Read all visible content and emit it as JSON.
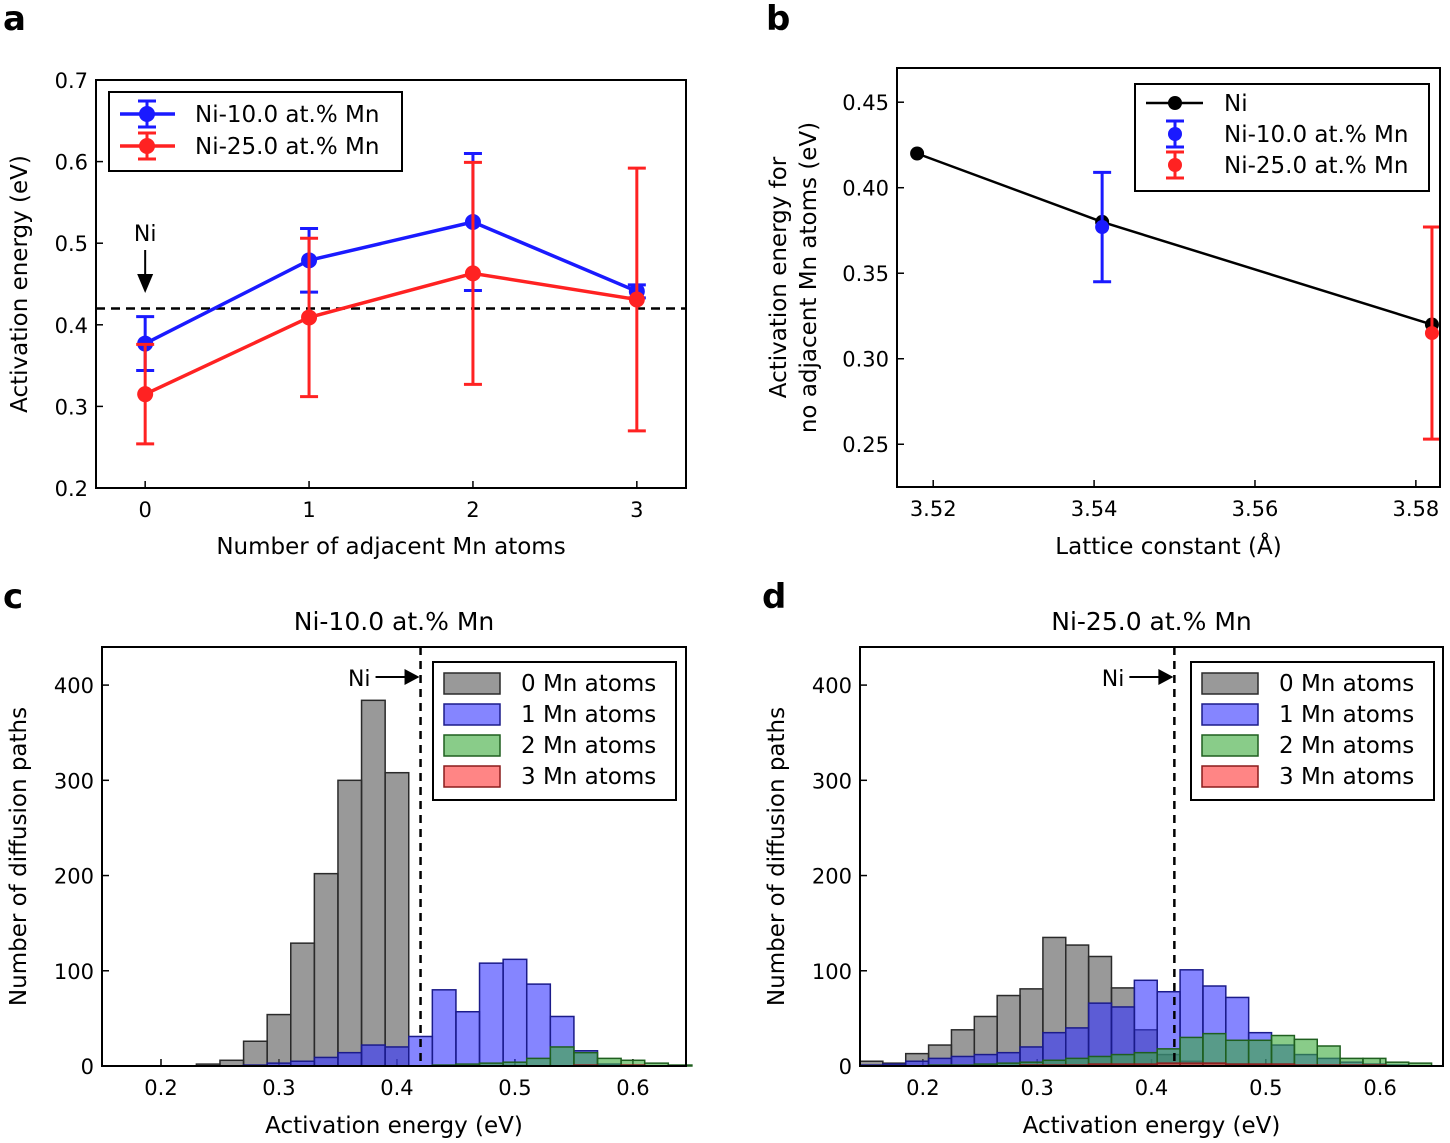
{
  "chart_data": [
    {
      "type": "line",
      "panel": "a",
      "title": "",
      "xlabel": "Number of adjacent Mn atoms",
      "ylabel": "Activation energy (eV)",
      "xlim": [
        -0.3,
        3.3
      ],
      "ylim": [
        0.2,
        0.7
      ],
      "xticks": [
        "0",
        "1",
        "2",
        "3"
      ],
      "xtick_values": [
        0,
        1,
        2,
        3
      ],
      "yticks": [
        "0.2",
        "0.3",
        "0.4",
        "0.5",
        "0.6",
        "0.7"
      ],
      "ytick_values": [
        0.2,
        0.3,
        0.4,
        0.5,
        0.6,
        0.7
      ],
      "reference_line": {
        "y": 0.42,
        "label": "Ni",
        "x": 0
      },
      "legend_position": "top-left",
      "series": [
        {
          "name": "Ni-10.0 at.% Mn",
          "color": "#1a1aff",
          "x": [
            0,
            1,
            2,
            3
          ],
          "y": [
            0.377,
            0.479,
            0.526,
            0.441
          ],
          "err": [
            0.033,
            0.039,
            0.084,
            0.008
          ]
        },
        {
          "name": "Ni-25.0 at.% Mn",
          "color": "#ff2222",
          "x": [
            0,
            1,
            2,
            3
          ],
          "y": [
            0.315,
            0.409,
            0.463,
            0.431
          ],
          "err": [
            0.061,
            0.097,
            0.136,
            0.161
          ]
        }
      ]
    },
    {
      "type": "line",
      "panel": "b",
      "title": "",
      "xlabel": "Lattice constant (Å)",
      "ylabel_line1": "Activation energy for",
      "ylabel_line2": "no adjacent Mn atoms (eV)",
      "xlim": [
        3.5155,
        3.583
      ],
      "ylim": [
        0.225,
        0.47
      ],
      "xticks": [
        "3.52",
        "3.54",
        "3.56",
        "3.58"
      ],
      "xtick_values": [
        3.52,
        3.54,
        3.56,
        3.58
      ],
      "yticks": [
        "0.25",
        "0.30",
        "0.35",
        "0.40",
        "0.45"
      ],
      "ytick_values": [
        0.25,
        0.3,
        0.35,
        0.4,
        0.45
      ],
      "legend_position": "top-right",
      "series": [
        {
          "name": "Ni",
          "color": "#000000",
          "x": [
            3.518,
            3.541,
            3.582
          ],
          "y": [
            0.42,
            0.38,
            0.32
          ],
          "err": null,
          "line": true
        },
        {
          "name": "Ni-10.0 at.% Mn",
          "color": "#1a1aff",
          "x": [
            3.541
          ],
          "y": [
            0.377
          ],
          "err": [
            0.032
          ],
          "line": false
        },
        {
          "name": "Ni-25.0 at.% Mn",
          "color": "#ff2222",
          "x": [
            3.582
          ],
          "y": [
            0.315
          ],
          "err": [
            0.062
          ],
          "line": false
        }
      ]
    },
    {
      "type": "histogram",
      "panel": "c",
      "title": "Ni-10.0 at.% Mn",
      "xlabel": "Activation energy (eV)",
      "ylabel": "Number of diffusion paths",
      "xlim": [
        0.15,
        0.645
      ],
      "ylim": [
        0,
        440
      ],
      "xticks": [
        "0.2",
        "0.3",
        "0.4",
        "0.5",
        "0.6"
      ],
      "xtick_values": [
        0.2,
        0.3,
        0.4,
        0.5,
        0.6
      ],
      "yticks": [
        "0",
        "100",
        "200",
        "300",
        "400"
      ],
      "ytick_values": [
        0,
        100,
        200,
        300,
        400
      ],
      "bin_start": 0.15,
      "bin_width": 0.02,
      "reference_line": {
        "x": 0.42,
        "label": "Ni"
      },
      "legend_position": "top-right",
      "series": [
        {
          "name": "0 Mn atoms",
          "color": "#555555",
          "values": [
            0,
            0,
            0,
            0,
            2,
            6,
            26,
            54,
            129,
            202,
            300,
            384,
            308,
            0,
            0,
            0,
            0,
            0,
            0,
            0,
            0,
            0,
            0,
            0,
            0
          ]
        },
        {
          "name": "1 Mn atoms",
          "color": "#3333ff",
          "values": [
            0,
            0,
            0,
            0,
            0,
            0,
            1,
            3,
            5,
            9,
            14,
            22,
            20,
            31,
            80,
            57,
            108,
            112,
            86,
            52,
            16,
            2,
            0,
            0,
            0
          ]
        },
        {
          "name": "2 Mn atoms",
          "color": "#3aaa3a",
          "values": [
            0,
            0,
            0,
            0,
            0,
            0,
            0,
            0,
            0,
            0,
            0,
            0,
            0,
            0,
            1,
            2,
            3,
            4,
            8,
            20,
            14,
            8,
            6,
            3,
            1
          ]
        },
        {
          "name": "3 Mn atoms",
          "color": "#ff3333",
          "values": [
            0,
            0,
            0,
            0,
            0,
            0,
            0,
            0,
            0,
            0,
            0,
            0,
            0,
            0,
            0,
            0,
            0,
            0,
            0,
            0,
            1,
            0,
            1,
            0,
            0
          ]
        }
      ]
    },
    {
      "type": "histogram",
      "panel": "d",
      "title": "Ni-25.0 at.% Mn",
      "xlabel": "Activation energy (eV)",
      "ylabel": "Number of diffusion paths",
      "xlim": [
        0.145,
        0.655
      ],
      "ylim": [
        0,
        440
      ],
      "xticks": [
        "0.2",
        "0.3",
        "0.4",
        "0.5",
        "0.6"
      ],
      "xtick_values": [
        0.2,
        0.3,
        0.4,
        0.5,
        0.6
      ],
      "yticks": [
        "0",
        "100",
        "200",
        "300",
        "400"
      ],
      "ytick_values": [
        0,
        100,
        200,
        300,
        400
      ],
      "bin_start": 0.145,
      "bin_width": 0.02,
      "reference_line": {
        "x": 0.42,
        "label": "Ni"
      },
      "legend_position": "top-right",
      "series": [
        {
          "name": "0 Mn atoms",
          "color": "#555555",
          "values": [
            5,
            3,
            13,
            22,
            38,
            52,
            74,
            81,
            135,
            127,
            115,
            82,
            38,
            12,
            5,
            3,
            2,
            1,
            0,
            0,
            0,
            0,
            0,
            0,
            0
          ]
        },
        {
          "name": "1 Mn atoms",
          "color": "#3333ff",
          "values": [
            1,
            2,
            5,
            8,
            10,
            12,
            14,
            20,
            35,
            40,
            66,
            62,
            90,
            78,
            101,
            84,
            72,
            35,
            22,
            12,
            8,
            4,
            2,
            1,
            0
          ]
        },
        {
          "name": "2 Mn atoms",
          "color": "#3aaa3a",
          "values": [
            0,
            0,
            0,
            1,
            1,
            2,
            3,
            4,
            6,
            8,
            10,
            12,
            14,
            18,
            30,
            34,
            27,
            27,
            32,
            28,
            21,
            8,
            8,
            4,
            3
          ]
        },
        {
          "name": "3 Mn atoms",
          "color": "#ff3333",
          "values": [
            0,
            0,
            0,
            0,
            0,
            0,
            0,
            1,
            1,
            1,
            2,
            2,
            2,
            3,
            3,
            3,
            2,
            2,
            2,
            1,
            1,
            1,
            1,
            0,
            0
          ]
        }
      ]
    }
  ]
}
